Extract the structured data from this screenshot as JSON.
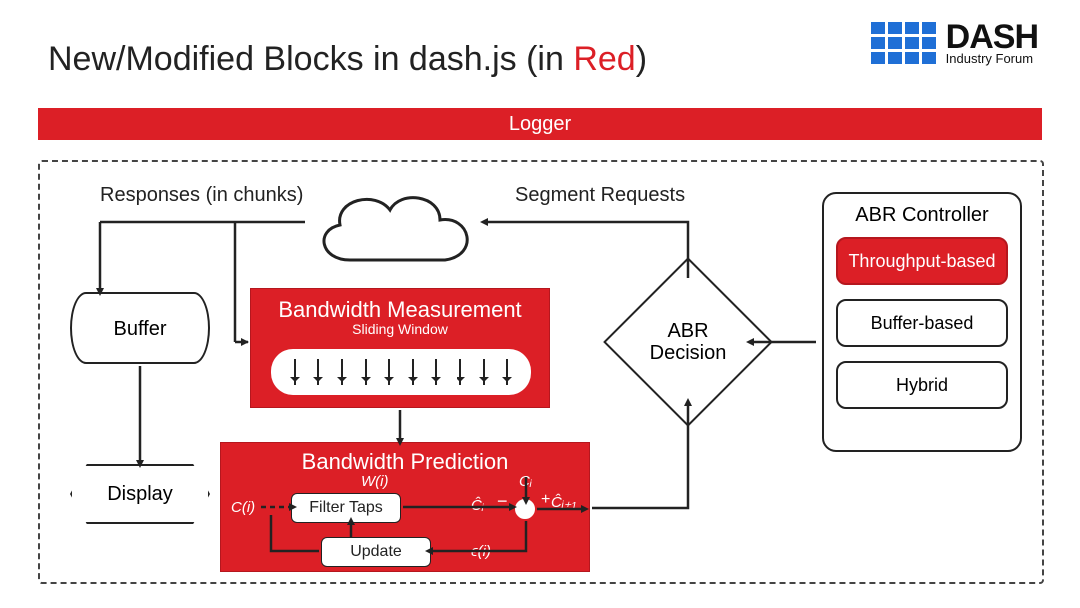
{
  "type": "flowchart",
  "colors": {
    "red": "#dc1f26",
    "red_border": "#b5171e",
    "blue": "#1f6fd6",
    "black": "#222222",
    "white": "#ffffff",
    "dash_border": "#444444"
  },
  "title": {
    "prefix": "New/Modified Blocks in dash.js (in ",
    "red_word": "Red",
    "suffix": ")"
  },
  "logo": {
    "line1": "DASH",
    "line2": "Industry Forum",
    "grid_cols": 4,
    "grid_rows": 3
  },
  "logger": "Logger",
  "labels": {
    "responses": "Responses (in chunks)",
    "segment_requests": "Segment Requests"
  },
  "nodes": {
    "buffer": "Buffer",
    "display": "Display",
    "measurement": {
      "title": "Bandwidth Measurement",
      "subtitle": "Sliding Window",
      "tick_count": 10
    },
    "prediction": {
      "title": "Bandwidth Prediction",
      "w_of_i": "W(i)",
      "c_of_i": "C(i)",
      "filter_taps": "Filter Taps",
      "update": "Update",
      "c_hat_i": "Ĉᵢ",
      "c_i": "Cᵢ",
      "eps_i": "ϵ(i)",
      "c_hat_i1": "Ĉᵢ₊₁"
    },
    "abr_decision": "ABR\nDecision",
    "abr_controller": {
      "heading": "ABR Controller",
      "options": [
        {
          "label": "Throughput-based",
          "red": true
        },
        {
          "label": "Buffer-based",
          "red": false
        },
        {
          "label": "Hybrid",
          "red": false
        }
      ]
    }
  },
  "edges": [
    "cloud → responses_label → buffer",
    "chunks → measurement",
    "buffer → display",
    "measurement → prediction",
    "prediction → abr_decision",
    "abr_decision → cloud (segment requests)",
    "abr_controller → abr_decision",
    "filter_taps → sum (Ĉᵢ)",
    "Cᵢ → sum",
    "sum → Ĉᵢ₊₁",
    "sum → ϵ(i) → update",
    "update → filter_taps",
    "C(i) → filter_taps (dashed)"
  ]
}
